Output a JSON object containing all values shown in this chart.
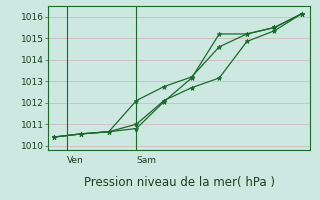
{
  "title": "Pression niveau de la mer( hPa )",
  "bg_color": "#cce8e0",
  "plot_bg_color": "#cce8e0",
  "grid_color": "#b8d4cc",
  "line_color": "#1a6b2a",
  "label_color": "#1a4020",
  "ylim": [
    1009.8,
    1016.5
  ],
  "yticks": [
    1010,
    1011,
    1012,
    1013,
    1014,
    1015,
    1016
  ],
  "line1_y": [
    1010.4,
    1010.55,
    1010.65,
    1012.1,
    1012.75,
    1013.2,
    1014.6,
    1015.2,
    1015.5,
    1016.15
  ],
  "line2_y": [
    1010.4,
    1010.55,
    1010.65,
    1010.8,
    1012.05,
    1013.15,
    1015.2,
    1015.2,
    1015.5,
    1016.15
  ],
  "line3_y": [
    1010.4,
    1010.55,
    1010.65,
    1011.0,
    1012.1,
    1012.7,
    1013.15,
    1014.85,
    1015.35,
    1016.15
  ],
  "x": [
    0,
    1,
    2,
    3,
    4,
    5,
    6,
    7,
    8,
    9
  ],
  "ven_x": 0.5,
  "sam_x": 3.0,
  "xlim": [
    -0.2,
    9.3
  ],
  "tick_label_fontsize": 6.5,
  "xlabel_fontsize": 8.5
}
